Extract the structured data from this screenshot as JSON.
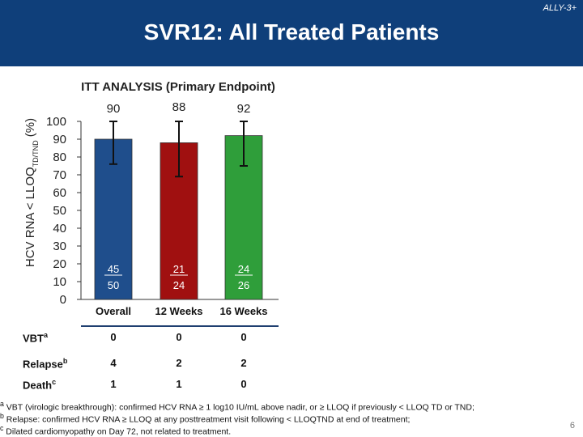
{
  "header": {
    "study": "ALLY-3+",
    "title": "SVR12: All Treated Patients"
  },
  "chart_data": {
    "type": "bar",
    "subtitle": "ITT ANALYSIS (Primary Endpoint)",
    "ylabel": "HCV RNA < LLOQTD/TND (%)",
    "ylim": [
      0,
      100
    ],
    "yticks": [
      0,
      10,
      20,
      30,
      40,
      50,
      60,
      70,
      80,
      90,
      100
    ],
    "categories": [
      "Overall",
      "12 Weeks",
      "16 Weeks"
    ],
    "values": [
      90,
      88,
      92
    ],
    "value_labels": [
      "90",
      "88",
      "92"
    ],
    "error_low": [
      76,
      69,
      75
    ],
    "error_high": [
      100,
      100,
      100
    ],
    "numerators": [
      "45",
      "21",
      "24"
    ],
    "denominators": [
      "50",
      "24",
      "26"
    ],
    "colors": [
      "#1f4e8c",
      "#a01010",
      "#2f9e3a"
    ]
  },
  "table": {
    "rows": [
      {
        "label": "VBT",
        "sup": "a",
        "values": [
          "0",
          "0",
          "0"
        ]
      },
      {
        "label": "Relapse",
        "sup": "b",
        "values": [
          "4",
          "2",
          "2"
        ]
      },
      {
        "label": "Death",
        "sup": "c",
        "values": [
          "1",
          "1",
          "0"
        ]
      }
    ]
  },
  "footnotes": {
    "a_sup": "a",
    "a": "VBT (virologic breakthrough): confirmed HCV RNA ≥ 1 log10 IU/mL above nadir, or ≥ LLOQ if previously < LLOQ TD or TND;",
    "b_sup": "b",
    "b": "Relapse: confirmed HCV RNA ≥ LLOQ at any posttreatment visit following < LLOQTND at end of treatment;",
    "c_sup": "c",
    "c": "Dilated cardiomyopathy on Day 72, not related to treatment."
  },
  "page_number": "6"
}
